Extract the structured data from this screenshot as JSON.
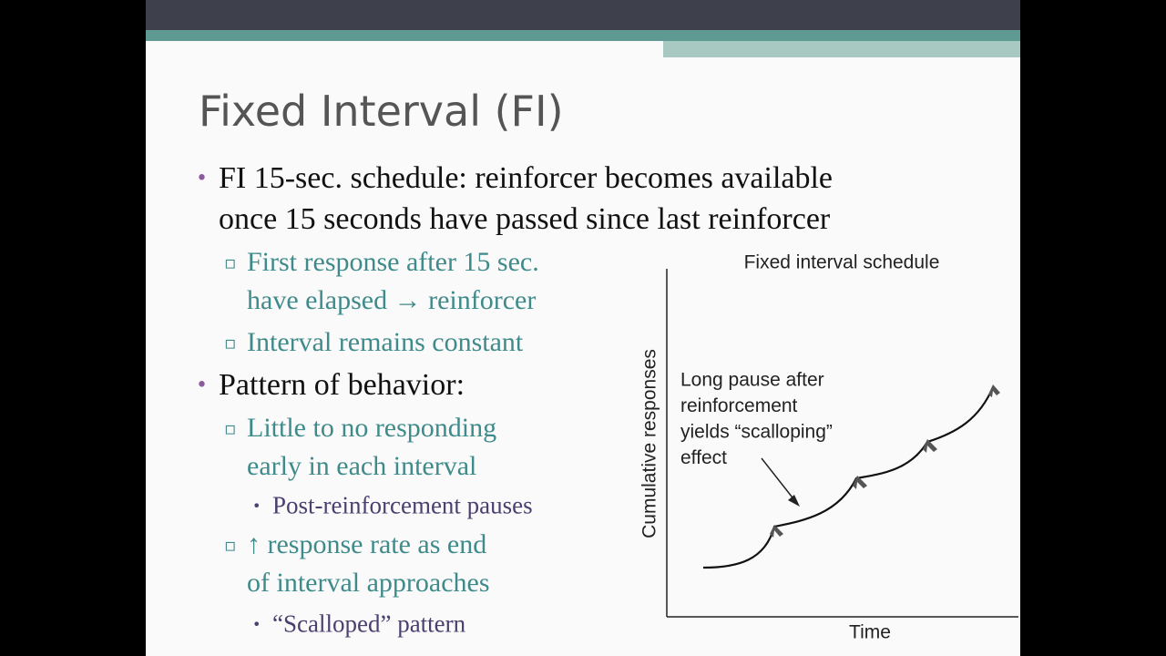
{
  "slide": {
    "title": "Fixed Interval (FI)",
    "items": [
      {
        "level": 1,
        "lines": [
          "FI 15-sec. schedule: reinforcer becomes available",
          "once 15 seconds have passed since last reinforcer"
        ]
      },
      {
        "level": 2,
        "lines": [
          "First response after 15 sec.",
          "have elapsed → reinforcer"
        ]
      },
      {
        "level": 2,
        "lines": [
          "Interval remains constant"
        ]
      },
      {
        "level": 1,
        "lines": [
          "Pattern of behavior:"
        ]
      },
      {
        "level": 2,
        "lines": [
          "Little to no responding",
          "early in each interval"
        ]
      },
      {
        "level": 3,
        "lines": [
          "Post-reinforcement pauses"
        ]
      },
      {
        "level": 2,
        "lines": [
          "↑ response rate as end",
          "of interval approaches"
        ]
      },
      {
        "level": 3,
        "lines": [
          "“Scalloped” pattern"
        ]
      }
    ]
  },
  "figure": {
    "title": "Fixed interval schedule",
    "y_label": "Cumulative responses",
    "x_label": "Time",
    "annotation": [
      "Long pause after",
      "reinforcement",
      "yields “scalloping”",
      "effect"
    ]
  }
}
